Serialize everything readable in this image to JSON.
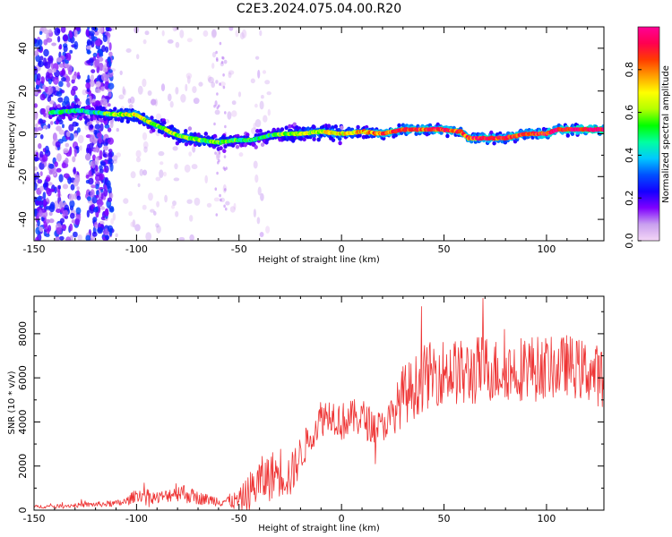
{
  "title": "C2E3.2024.075.04.00.R20",
  "chart_data": [
    {
      "type": "heatmap",
      "xlabel": "Height of straight line (km)",
      "ylabel": "Frequency (Hz)",
      "xlim": [
        -150,
        128
      ],
      "ylim": [
        -50,
        50
      ],
      "xticks": [
        -150,
        -100,
        -50,
        0,
        50,
        100
      ],
      "yticks": [
        -40,
        -20,
        0,
        20,
        40
      ],
      "colorbar": {
        "label": "Normalized spectral amplitude",
        "range": [
          0,
          1
        ],
        "ticks": [
          "0.0",
          "0.2",
          "0.4",
          "0.6",
          "0.8"
        ],
        "colormap": [
          "#f4d6f6",
          "#c9a0ef",
          "#7f00ff",
          "#1400ff",
          "#0050ff",
          "#00c8ff",
          "#00ffa0",
          "#00ff00",
          "#b4ff00",
          "#ffff00",
          "#ffa000",
          "#ff3c00",
          "#ff0050",
          "#ff0096"
        ]
      },
      "ridge": [
        {
          "x": -140,
          "y": 10,
          "a": 0.45
        },
        {
          "x": -128,
          "y": 11,
          "a": 0.45
        },
        {
          "x": -120,
          "y": 10,
          "a": 0.45
        },
        {
          "x": -110,
          "y": 9,
          "a": 0.6
        },
        {
          "x": -100,
          "y": 9,
          "a": 0.7
        },
        {
          "x": -95,
          "y": 6,
          "a": 0.65
        },
        {
          "x": -88,
          "y": 3,
          "a": 0.6
        },
        {
          "x": -82,
          "y": 0,
          "a": 0.6
        },
        {
          "x": -75,
          "y": -2,
          "a": 0.6
        },
        {
          "x": -68,
          "y": -3,
          "a": 0.55
        },
        {
          "x": -60,
          "y": -4,
          "a": 0.55
        },
        {
          "x": -52,
          "y": -3,
          "a": 0.5
        },
        {
          "x": -44,
          "y": -3,
          "a": 0.5
        },
        {
          "x": -36,
          "y": -1,
          "a": 0.45
        },
        {
          "x": -28,
          "y": 0,
          "a": 0.55
        },
        {
          "x": -20,
          "y": 0,
          "a": 0.6
        },
        {
          "x": -10,
          "y": 1,
          "a": 0.65
        },
        {
          "x": 0,
          "y": 0,
          "a": 0.7
        },
        {
          "x": 10,
          "y": 1,
          "a": 0.75
        },
        {
          "x": 20,
          "y": 0,
          "a": 0.8
        },
        {
          "x": 30,
          "y": 2,
          "a": 0.85
        },
        {
          "x": 40,
          "y": 2,
          "a": 0.85
        },
        {
          "x": 50,
          "y": 2,
          "a": 0.9
        },
        {
          "x": 58,
          "y": 1,
          "a": 0.85
        },
        {
          "x": 62,
          "y": -2,
          "a": 0.85
        },
        {
          "x": 70,
          "y": -2,
          "a": 0.9
        },
        {
          "x": 80,
          "y": -2,
          "a": 0.85
        },
        {
          "x": 90,
          "y": 0,
          "a": 0.85
        },
        {
          "x": 100,
          "y": 0,
          "a": 0.9
        },
        {
          "x": 105,
          "y": 2,
          "a": 0.9
        },
        {
          "x": 115,
          "y": 2,
          "a": 0.95
        },
        {
          "x": 128,
          "y": 2,
          "a": 0.95
        }
      ]
    },
    {
      "type": "line",
      "xlabel": "Height of straight line (km)",
      "ylabel": "SNR (10 * v/v)",
      "xlim": [
        -150,
        128
      ],
      "ylim": [
        0,
        9700
      ],
      "xticks": [
        -150,
        -100,
        -50,
        0,
        50,
        100
      ],
      "yticks": [
        0,
        2000,
        4000,
        6000,
        8000
      ],
      "series": [
        {
          "color": "#ee3333",
          "x": [
            -150,
            -140,
            -130,
            -120,
            -110,
            -105,
            -100,
            -95,
            -90,
            -85,
            -80,
            -75,
            -70,
            -65,
            -60,
            -55,
            -50,
            -45,
            -40,
            -35,
            -30,
            -25,
            -20,
            -15,
            -10,
            -5,
            0,
            5,
            10,
            15,
            20,
            25,
            30,
            35,
            40,
            45,
            50,
            55,
            60,
            65,
            70,
            75,
            80,
            85,
            90,
            95,
            100,
            105,
            110,
            115,
            120,
            128
          ],
          "values": [
            150,
            180,
            220,
            260,
            300,
            380,
            700,
            650,
            550,
            650,
            900,
            700,
            550,
            480,
            420,
            420,
            400,
            800,
            1300,
            1500,
            1800,
            1500,
            2500,
            3400,
            4200,
            4400,
            4000,
            4200,
            4200,
            3800,
            3800,
            4300,
            5200,
            5500,
            6000,
            6200,
            6300,
            6300,
            6100,
            6300,
            6500,
            6300,
            6400,
            6300,
            6600,
            6400,
            6500,
            6400,
            6600,
            6400,
            6300,
            6000
          ],
          "amplitude": [
            80,
            80,
            100,
            120,
            150,
            200,
            300,
            300,
            300,
            300,
            500,
            400,
            300,
            250,
            250,
            300,
            500,
            900,
            1100,
            1100,
            1200,
            1000,
            900,
            700,
            900,
            800,
            900,
            800,
            900,
            800,
            700,
            900,
            1400,
            1400,
            1500,
            1500,
            1500,
            1500,
            1600,
            1600,
            1500,
            1500,
            1400,
            1500,
            1500,
            1500,
            1400,
            1400,
            1400,
            1400,
            1400,
            1400
          ]
        }
      ]
    }
  ]
}
